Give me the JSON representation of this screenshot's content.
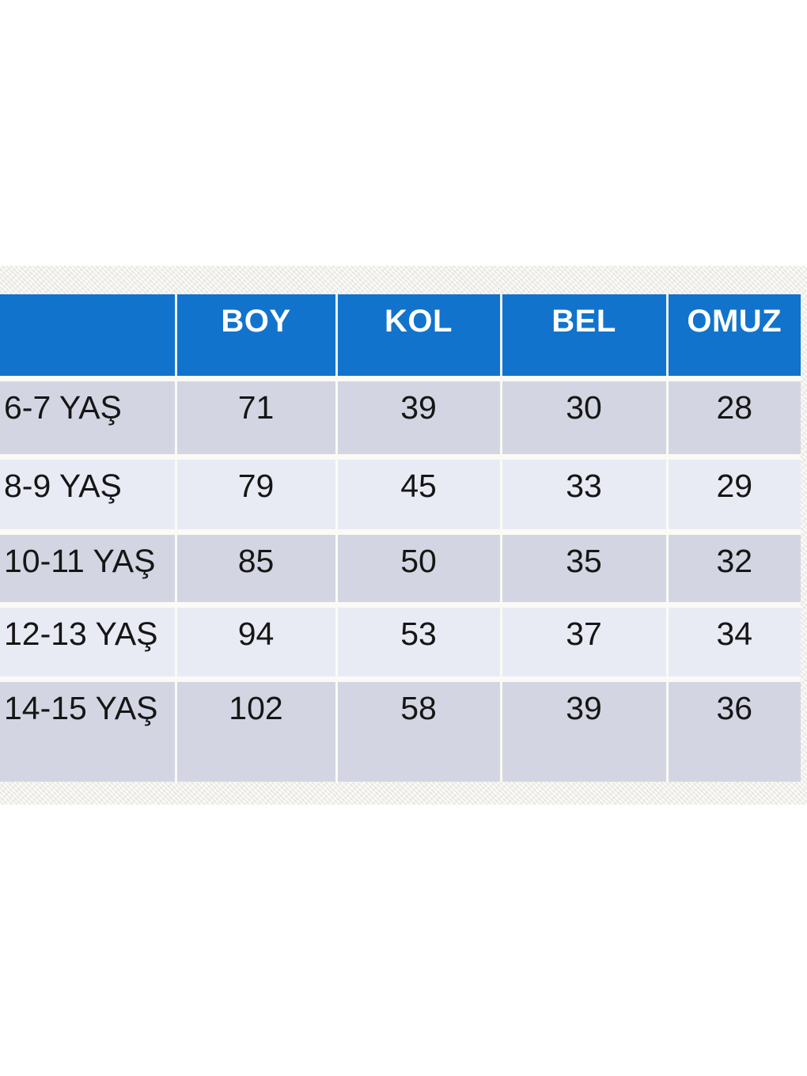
{
  "colors": {
    "header_background": "#1273cc",
    "header_text": "#ffffff",
    "row_dark_background": "#d3d6e2",
    "row_light_background": "#e9ebf4",
    "cell_gap_lines": "#fbfaf6",
    "fabric_band_background": "#f2f0ea",
    "body_text": "#161616",
    "page_background": "#ffffff"
  },
  "chart_data": {
    "type": "table",
    "title": "",
    "columns": [
      "",
      "BOY",
      "KOL",
      "BEL",
      "OMUZ"
    ],
    "rows": [
      {
        "label": "6-7 YAŞ",
        "values": [
          "71",
          "39",
          "30",
          "28"
        ]
      },
      {
        "label": "8-9 YAŞ",
        "values": [
          "79",
          "45",
          "33",
          "29"
        ]
      },
      {
        "label": "10-11 YAŞ",
        "values": [
          "85",
          "50",
          "35",
          "32"
        ]
      },
      {
        "label": "12-13 YAŞ",
        "values": [
          "94",
          "53",
          "37",
          "34"
        ]
      },
      {
        "label": "14-15 YAŞ",
        "values": [
          "102",
          "58",
          "39",
          "36"
        ]
      }
    ]
  }
}
